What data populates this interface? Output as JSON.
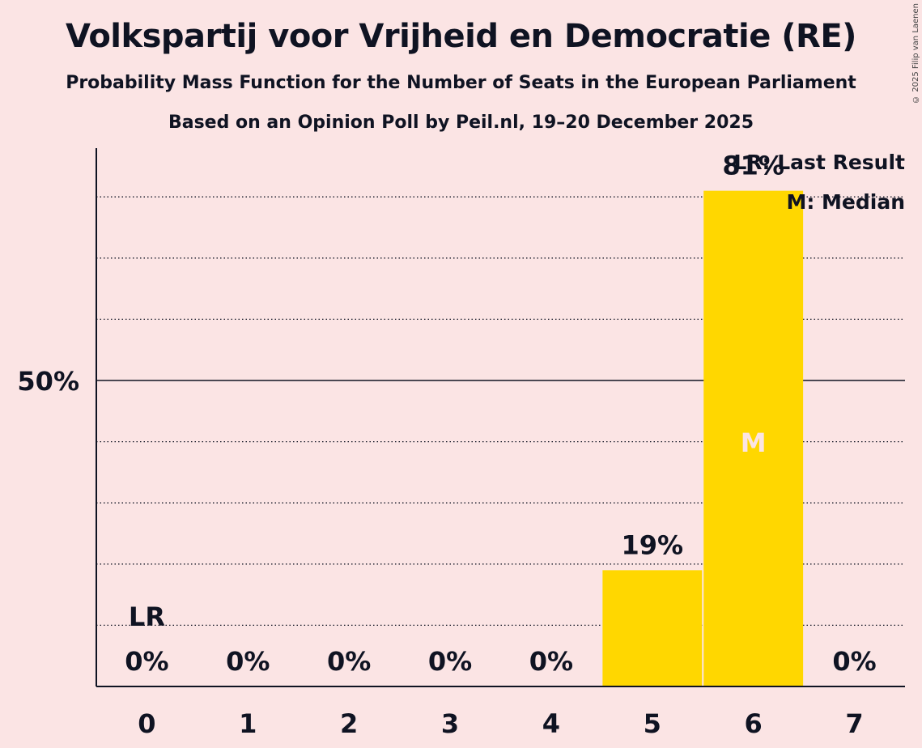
{
  "title": "Volkspartij voor Vrijheid en Democratie (RE)",
  "subtitle": "Probability Mass Function for the Number of Seats in the European Parliament",
  "subtitle2": "Based on an Opinion Poll by Peil.nl, 19–20 December 2025",
  "copyright": "© 2025 Filip van Laenen",
  "colors": {
    "background": "#fbe4e4",
    "bar": "#ffd700",
    "text": "#0f1322",
    "median_marker": "#fbe4e4"
  },
  "chart_data": {
    "type": "bar",
    "title": "Volkspartij voor Vrijheid en Democratie (RE)",
    "xlabel": "",
    "ylabel": "",
    "categories": [
      "0",
      "1",
      "2",
      "3",
      "4",
      "5",
      "6",
      "7"
    ],
    "values": [
      0,
      0,
      0,
      0,
      0,
      19,
      81,
      0
    ],
    "value_labels": [
      "0%",
      "0%",
      "0%",
      "0%",
      "0%",
      "19%",
      "81%",
      "0%"
    ],
    "ylim": [
      0,
      88
    ],
    "y_ticks": [
      {
        "value": 50,
        "label": "50%"
      }
    ],
    "gridlines": [
      10,
      20,
      30,
      40,
      60,
      70,
      80
    ],
    "last_result_seat": 0,
    "last_result_label": "LR",
    "median_seat": 6,
    "median_label": "M",
    "legend": [
      "LR: Last Result",
      "M: Median"
    ],
    "legend_position": "top-right"
  }
}
